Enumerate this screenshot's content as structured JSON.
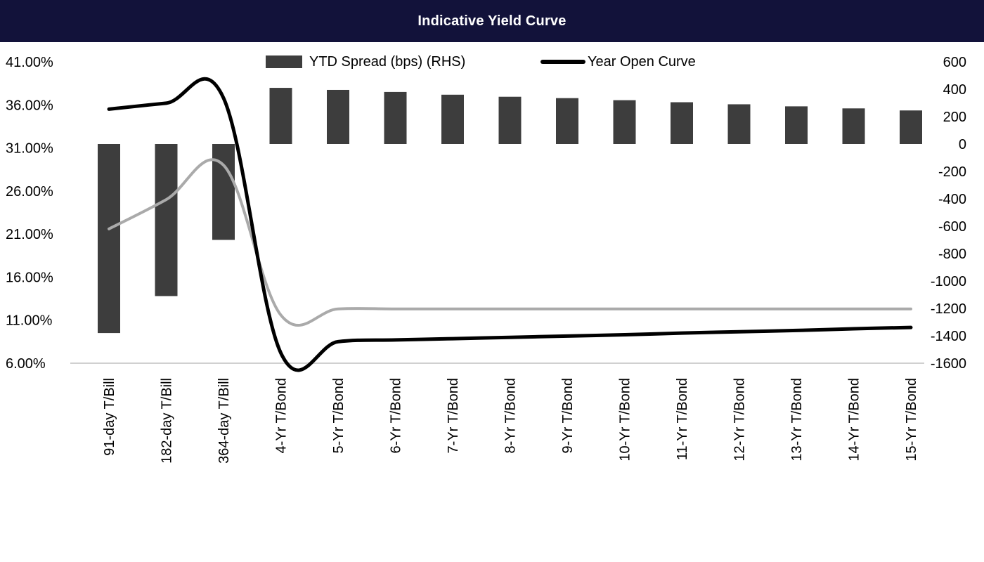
{
  "title": "Indicative Yield Curve",
  "chart_data": {
    "type": "bar+line",
    "categories": [
      "91-day T/Bill",
      "182-day T/Bill",
      "364-day T/Bill",
      "4-Yr T/Bond",
      "5-Yr T/Bond",
      "6-Yr T/Bond",
      "7-Yr T/Bond",
      "8-Yr T/Bond",
      "9-Yr T/Bond",
      "10-Yr T/Bond",
      "11-Yr T/Bond",
      "12-Yr T/Bond",
      "13-Yr T/Bond",
      "14-Yr T/Bond",
      "15-Yr T/Bond"
    ],
    "bar_series": {
      "name": "YTD Spread (bps) (RHS)",
      "color": "#3d3d3d",
      "values": [
        -1380,
        -1110,
        -700,
        410,
        395,
        380,
        360,
        345,
        335,
        320,
        305,
        290,
        275,
        260,
        245
      ]
    },
    "line_series": [
      {
        "name": "Year Open Curve",
        "color": "#000000",
        "values": [
          35.5,
          36.2,
          36.8,
          7.2,
          8.5,
          8.7,
          8.85,
          9.0,
          9.15,
          9.3,
          9.5,
          9.65,
          9.8,
          10.0,
          10.15
        ]
      },
      {
        "name": "",
        "color": "#aaaaaa",
        "values": [
          21.6,
          25.0,
          29.0,
          11.6,
          12.3,
          12.3,
          12.3,
          12.3,
          12.3,
          12.3,
          12.3,
          12.3,
          12.3,
          12.3,
          12.3
        ]
      }
    ],
    "left_axis": {
      "ticks": [
        "41.00%",
        "36.00%",
        "31.00%",
        "26.00%",
        "21.00%",
        "16.00%",
        "11.00%",
        "6.00%"
      ],
      "ylim": [
        6,
        41
      ]
    },
    "right_axis": {
      "ticks": [
        "600",
        "400",
        "200",
        "0",
        "-200",
        "-400",
        "-600",
        "-800",
        "-1000",
        "-1200",
        "-1400",
        "-1600"
      ],
      "ylim": [
        -1600,
        600
      ]
    },
    "legend_position": "top",
    "grid": false
  }
}
